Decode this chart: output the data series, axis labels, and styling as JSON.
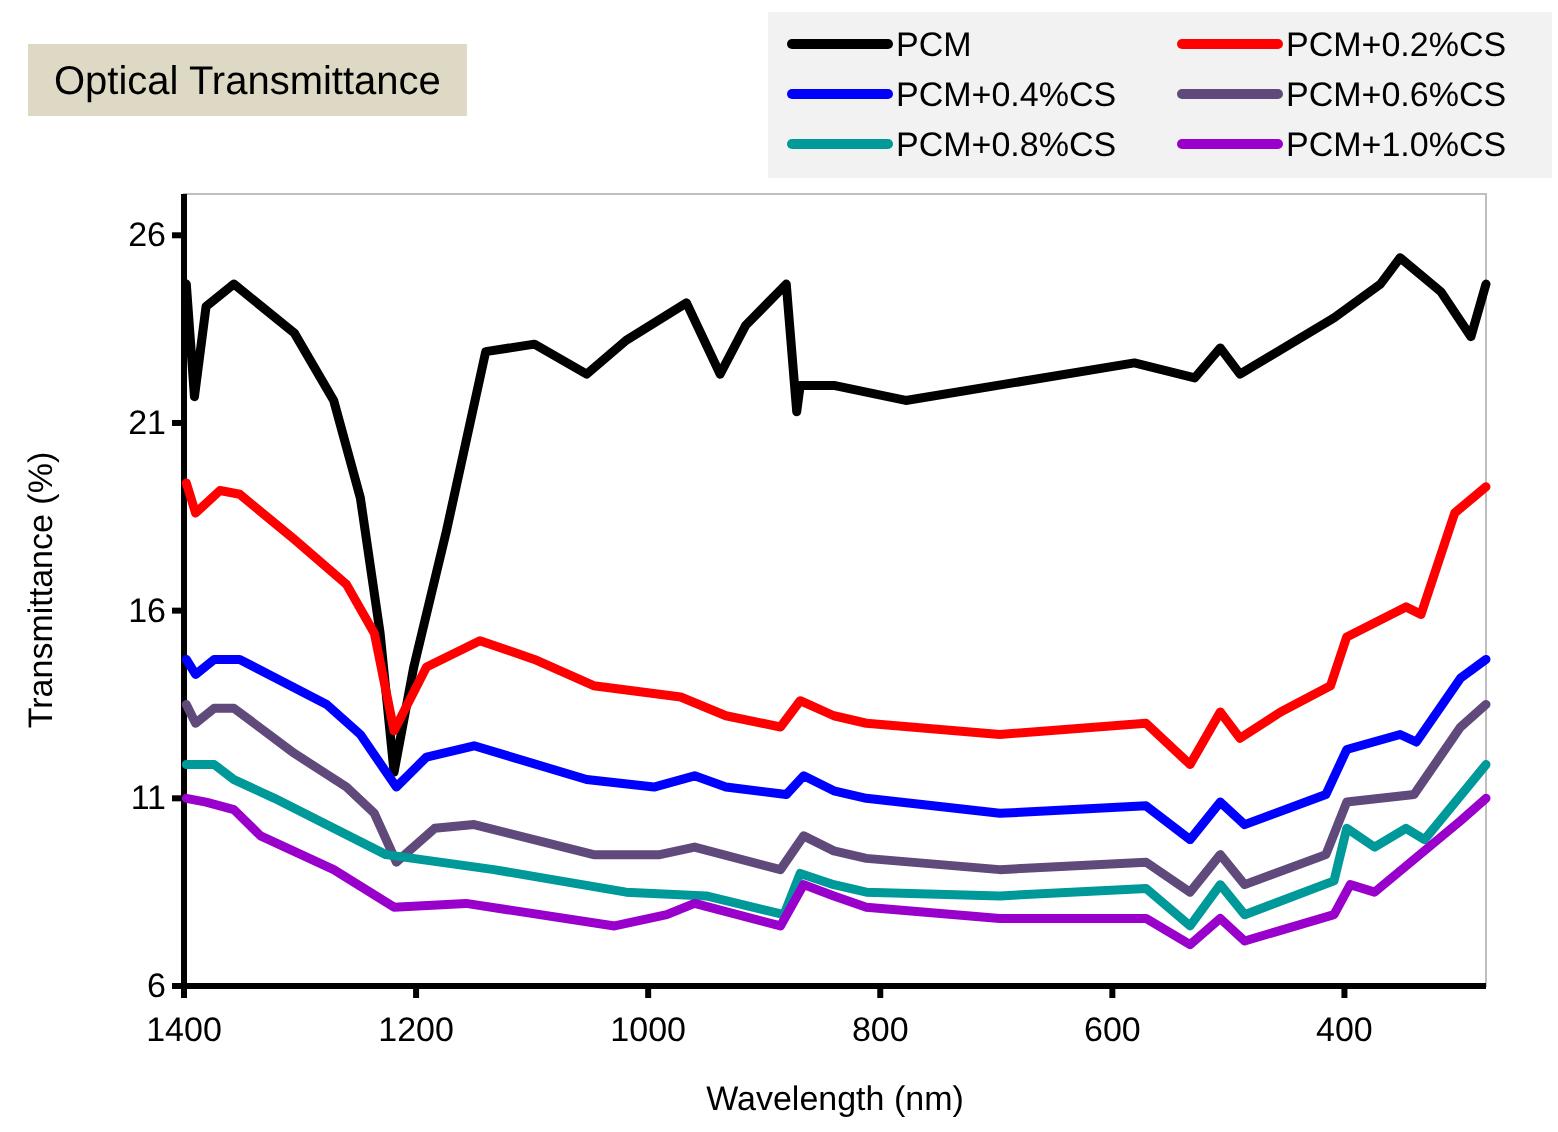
{
  "chart_data": {
    "type": "line",
    "title": "Optical Transmittance",
    "xlabel": "Wavelength (nm)",
    "ylabel": "Transmittance (%)",
    "xlim": [
      1400,
      278
    ],
    "xticks": [
      1400,
      1200,
      1000,
      800,
      600,
      400
    ],
    "ylim": [
      6,
      27.1
    ],
    "yticks": [
      6,
      11,
      16,
      21,
      26
    ],
    "grid": false,
    "legend": "top right",
    "line_style": "solid",
    "marker": "none",
    "series": [
      {
        "name": "PCM",
        "color": "#000000",
        "x": [
          1398,
          1391,
          1381,
          1357,
          1305,
          1271,
          1248,
          1231,
          1219,
          1202,
          1174,
          1140,
          1098,
          1053,
          1019,
          967,
          938,
          916,
          881,
          872,
          869,
          840,
          778,
          581,
          529,
          507,
          490,
          409,
          369,
          352,
          317,
          291,
          278
        ],
        "values": [
          24.7,
          21.7,
          24.1,
          24.7,
          23.4,
          21.6,
          19.0,
          15.4,
          11.7,
          14.5,
          18.1,
          22.9,
          23.1,
          22.3,
          23.2,
          24.2,
          22.3,
          23.6,
          24.7,
          21.3,
          22.0,
          22.0,
          21.6,
          22.6,
          22.2,
          23.0,
          22.3,
          23.8,
          24.7,
          25.4,
          24.5,
          23.3,
          24.7
        ]
      },
      {
        "name": "PCM+0.2%CS",
        "color": "#ff0000",
        "x": [
          1398,
          1390,
          1369,
          1352,
          1305,
          1260,
          1236,
          1219,
          1191,
          1145,
          1098,
          1047,
          972,
          933,
          886,
          869,
          840,
          812,
          697,
          571,
          533,
          507,
          490,
          455,
          412,
          398,
          347,
          334,
          305,
          278
        ],
        "values": [
          19.4,
          18.6,
          19.2,
          19.1,
          17.9,
          16.7,
          15.4,
          12.8,
          14.5,
          15.2,
          14.7,
          14.0,
          13.7,
          13.2,
          12.9,
          13.6,
          13.2,
          13.0,
          12.7,
          13.0,
          11.9,
          13.3,
          12.6,
          13.3,
          14.0,
          15.3,
          16.1,
          15.9,
          18.6,
          19.3
        ]
      },
      {
        "name": "PCM+0.4%CS",
        "color": "#0000ff",
        "x": [
          1398,
          1390,
          1374,
          1352,
          1277,
          1248,
          1217,
          1191,
          1150,
          1053,
          995,
          960,
          933,
          881,
          866,
          840,
          812,
          697,
          571,
          533,
          507,
          486,
          416,
          398,
          352,
          338,
          300,
          278
        ],
        "values": [
          14.7,
          14.3,
          14.7,
          14.7,
          13.5,
          12.7,
          11.3,
          12.1,
          12.4,
          11.5,
          11.3,
          11.6,
          11.3,
          11.1,
          11.6,
          11.2,
          11.0,
          10.6,
          10.8,
          9.9,
          10.9,
          10.3,
          11.1,
          12.3,
          12.7,
          12.5,
          14.2,
          14.7
        ]
      },
      {
        "name": "PCM+0.6%CS",
        "color": "#604a7b",
        "x": [
          1398,
          1390,
          1374,
          1357,
          1305,
          1260,
          1236,
          1217,
          1184,
          1150,
          1047,
          990,
          960,
          886,
          866,
          840,
          812,
          697,
          571,
          533,
          507,
          486,
          416,
          398,
          340,
          300,
          278
        ],
        "values": [
          13.5,
          13.0,
          13.4,
          13.4,
          12.2,
          11.3,
          10.6,
          9.3,
          10.2,
          10.3,
          9.5,
          9.5,
          9.7,
          9.1,
          10.0,
          9.6,
          9.4,
          9.1,
          9.3,
          8.5,
          9.5,
          8.7,
          9.5,
          10.9,
          11.1,
          12.9,
          13.5
        ]
      },
      {
        "name": "PCM+0.8%CS",
        "color": "#009999",
        "x": [
          1398,
          1374,
          1357,
          1322,
          1226,
          1133,
          1019,
          950,
          883,
          869,
          840,
          812,
          697,
          571,
          533,
          507,
          486,
          409,
          398,
          374,
          347,
          331,
          278
        ],
        "values": [
          11.9,
          11.9,
          11.5,
          11.0,
          9.5,
          9.1,
          8.5,
          8.4,
          7.9,
          9.0,
          8.7,
          8.5,
          8.4,
          8.6,
          7.6,
          8.7,
          7.9,
          8.8,
          10.2,
          9.7,
          10.2,
          9.9,
          11.9
        ]
      },
      {
        "name": "PCM+1.0%CS",
        "color": "#9900cc",
        "x": [
          1398,
          1381,
          1357,
          1334,
          1271,
          1219,
          1157,
          1029,
          984,
          960,
          886,
          866,
          840,
          812,
          697,
          571,
          533,
          507,
          486,
          409,
          395,
          374,
          300,
          278
        ],
        "values": [
          11.0,
          10.9,
          10.7,
          10.0,
          9.1,
          8.1,
          8.2,
          7.6,
          7.9,
          8.2,
          7.6,
          8.7,
          8.4,
          8.1,
          7.8,
          7.8,
          7.1,
          7.8,
          7.2,
          7.9,
          8.7,
          8.5,
          10.4,
          11.0
        ]
      }
    ]
  }
}
